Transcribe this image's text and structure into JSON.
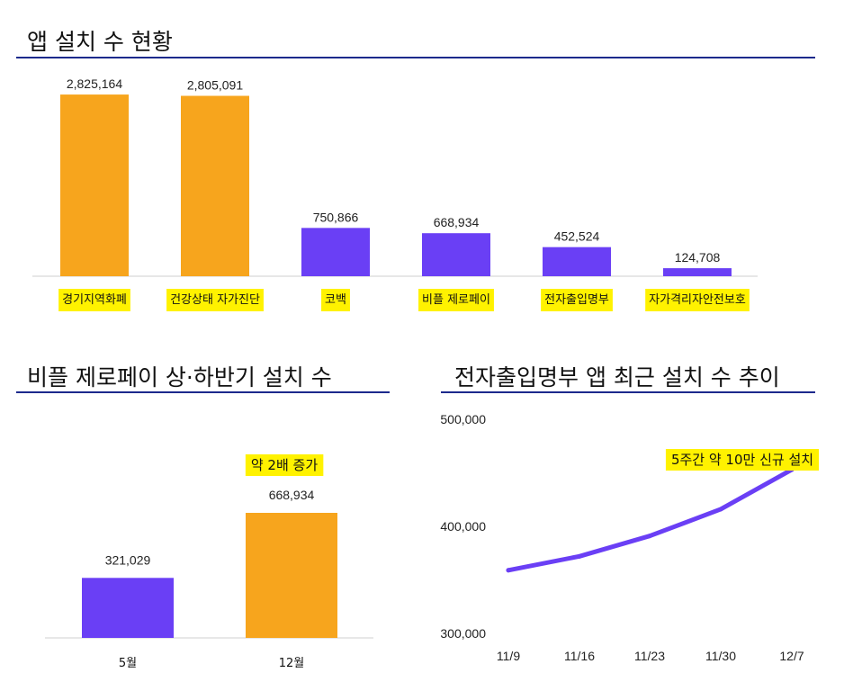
{
  "colors": {
    "orange": "#f7a51d",
    "purple": "#6a3ff5",
    "highlight": "#fff200",
    "rule": "#1c2a8c"
  },
  "titles": {
    "main": "앱 설치 수 현황",
    "half": "비플 제로페이 상·하반기 설치 수",
    "trend": "전자출입명부 앱 최근 설치 수 추이"
  },
  "chart_data": [
    {
      "type": "bar",
      "title": "앱 설치 수 현황",
      "categories": [
        "경기지역화폐",
        "건강상태 자가진단",
        "코백",
        "비플 제로페이",
        "전자출입명부",
        "자가격리자안전보호"
      ],
      "values": [
        2825164,
        2805091,
        750866,
        668934,
        452524,
        124708
      ],
      "value_labels": [
        "2,825,164",
        "2,805,091",
        "750,866",
        "668,934",
        "452,524",
        "124,708"
      ],
      "bar_colors": [
        "#f7a51d",
        "#f7a51d",
        "#6a3ff5",
        "#6a3ff5",
        "#6a3ff5",
        "#6a3ff5"
      ],
      "ylim": [
        0,
        3000000
      ],
      "category_highlight": true
    },
    {
      "type": "bar",
      "title": "비플 제로페이 상·하반기 설치 수",
      "categories": [
        "5월",
        "12월"
      ],
      "values": [
        321029,
        668934
      ],
      "value_labels": [
        "321,029",
        "668,934"
      ],
      "bar_colors": [
        "#6a3ff5",
        "#f7a51d"
      ],
      "ylim": [
        0,
        900000
      ],
      "annotation": "약 2배 증가"
    },
    {
      "type": "line",
      "title": "전자출입명부 앱 최근 설치 수 추이",
      "x": [
        "11/9",
        "11/16",
        "11/23",
        "11/30",
        "12/7"
      ],
      "values": [
        359000,
        372000,
        391000,
        416000,
        453000
      ],
      "yticks": [
        "300,000",
        "400,000",
        "500,000"
      ],
      "ylim": [
        300000,
        500000
      ],
      "series_color": "#6a3ff5",
      "annotation": "5주간 약 10만 신규 설치"
    }
  ]
}
